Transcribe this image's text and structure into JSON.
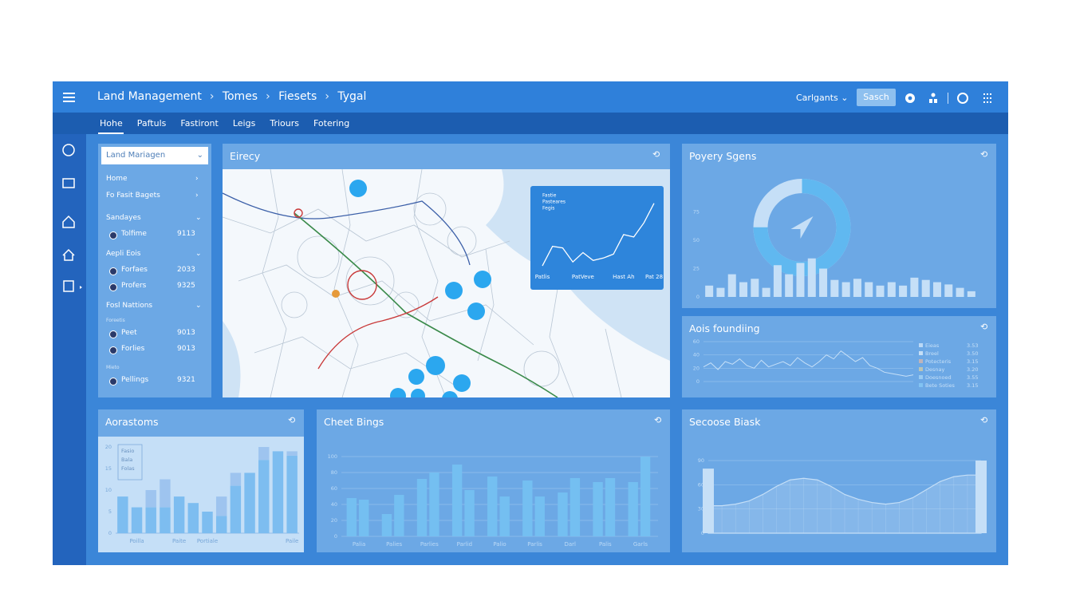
{
  "header": {
    "breadcrumb": [
      "Land Management",
      "Tomes",
      "Fiesets",
      "Tygal"
    ],
    "account": "Carlgants",
    "search": "Sasch"
  },
  "tabs": [
    "Hohe",
    "Paftuls",
    "Fastiront",
    "Leigs",
    "Triours",
    "Fotering"
  ],
  "sidebar": {
    "select": "Land Mariagen",
    "links": [
      "Home",
      "Fo Fasit Bagets"
    ],
    "sections": [
      {
        "title": "Sandayes",
        "items": [
          {
            "label": "Tolfime",
            "value": "9113"
          }
        ]
      },
      {
        "title": "Aepli Eois",
        "items": [
          {
            "label": "Forfaes",
            "value": "2033"
          },
          {
            "label": "Profers",
            "value": "9325"
          }
        ]
      },
      {
        "title": "Fosl Nattions",
        "note": "Foreetis",
        "items": [
          {
            "label": "Peet",
            "value": "9013"
          },
          {
            "label": "Forlies",
            "value": "9013"
          }
        ]
      },
      {
        "note": "Mieto",
        "items": [
          {
            "label": "Pellings",
            "value": "9321"
          }
        ]
      }
    ]
  },
  "map": {
    "title": "Eirecy",
    "inset": {
      "type": "line",
      "legend": [
        "Fastie",
        "Pasteares",
        "Fegis"
      ],
      "categories": [
        "Patlis",
        null,
        null,
        null,
        "PatVeve",
        null,
        null,
        null,
        "Hast Ah",
        null,
        null,
        "Pat 28"
      ],
      "values": [
        5,
        30,
        28,
        10,
        22,
        12,
        15,
        20,
        45,
        42,
        60,
        85
      ],
      "color": "#ffffff",
      "ylim": [
        0,
        100
      ]
    }
  },
  "charts": [
    {
      "type": "bar",
      "title": "Poyery Sgens",
      "donut": 75,
      "donut_color": "#1fa8f0",
      "values": [
        10,
        8,
        20,
        13,
        16,
        8,
        28,
        20,
        30,
        34,
        25,
        15,
        13,
        16,
        13,
        10,
        13,
        10,
        17,
        15,
        13,
        11,
        8,
        5
      ],
      "color": "#ffffff",
      "ylim": [
        0,
        100
      ],
      "yticks": [
        0,
        25,
        50,
        75
      ],
      "grid": false
    },
    {
      "type": "line",
      "title": "Aois foundiing",
      "series": [
        {
          "values": [
            22,
            28,
            18,
            30,
            26,
            34,
            24,
            20,
            32,
            22,
            26,
            30,
            24,
            36,
            28,
            22,
            30,
            40,
            34,
            46,
            38,
            30,
            36,
            24,
            20,
            14,
            12,
            10,
            8,
            10
          ],
          "color": "#ffffff"
        }
      ],
      "ylim": [
        0,
        60
      ],
      "yticks": [
        0,
        20,
        40,
        60
      ],
      "grid": true,
      "legend": [
        {
          "name": "Eieas",
          "value": "3.53",
          "color": "#e6f2ff"
        },
        {
          "name": "Breel",
          "value": "3.50",
          "color": "#ffffff"
        },
        {
          "name": "Potecteris",
          "value": "3.15",
          "color": "#f0a07a"
        },
        {
          "name": "Desnay",
          "value": "3.20",
          "color": "#e8c36a"
        },
        {
          "name": "Doesnoed",
          "value": "3.55",
          "color": "#9ed3f5"
        },
        {
          "name": "Bete Soties",
          "value": "3.15",
          "color": "#6cc0f5"
        }
      ]
    },
    {
      "type": "bar",
      "title": "Aorastoms",
      "stacked": true,
      "categories": [
        null,
        "Poilla",
        null,
        null,
        "Paite",
        null,
        "Portiale",
        null,
        null,
        null,
        null,
        null,
        "Paile"
      ],
      "series": [
        {
          "name": "Fasio",
          "color": "#5fb3f0",
          "values": [
            8.5,
            6,
            6,
            6,
            8.5,
            7,
            5,
            4,
            11,
            14,
            17,
            19,
            18
          ]
        },
        {
          "name": "Bala",
          "color": "#a9c4ee",
          "values": [
            0,
            0,
            4,
            6.5,
            0,
            0,
            0,
            4.5,
            3,
            0,
            3,
            0,
            1
          ]
        }
      ],
      "legend_note": "Folas",
      "ylim": [
        0,
        20
      ],
      "yticks": [
        0,
        5,
        10,
        15,
        20
      ],
      "grid": false
    },
    {
      "type": "bar",
      "title": "Cheet Bings",
      "categories": [
        "Palia",
        "Palies",
        "Parlies",
        "Parlid",
        "Palio",
        "Parlis",
        "Darl",
        "Palis",
        "Garls"
      ],
      "series": [
        {
          "color": "#4cb8f2",
          "values": [
            48,
            28,
            72,
            90,
            75,
            70,
            55,
            68,
            68
          ]
        },
        {
          "color": "#4cb8f2",
          "values": [
            46,
            52,
            80,
            58,
            50,
            50,
            73,
            73,
            100
          ]
        }
      ],
      "ylim": [
        0,
        100
      ],
      "yticks": [
        0,
        20,
        40,
        60,
        80,
        100
      ],
      "grid": true
    },
    {
      "type": "line",
      "title": "Secoose Biask",
      "area": true,
      "series": [
        {
          "values": [
            34,
            34,
            36,
            40,
            48,
            58,
            66,
            68,
            66,
            58,
            48,
            42,
            38,
            36,
            38,
            44,
            54,
            64,
            70,
            72,
            72
          ],
          "color": "#ffffff"
        },
        {
          "kind": "bar",
          "values": [
            80,
            null,
            null,
            null,
            null,
            null,
            null,
            null,
            null,
            null,
            null,
            null,
            null,
            null,
            null,
            null,
            null,
            null,
            null,
            null,
            90
          ],
          "color": "#ffffff"
        }
      ],
      "ylim": [
        0,
        90
      ],
      "yticks": [
        0,
        30,
        60,
        90
      ],
      "grid": true
    }
  ]
}
